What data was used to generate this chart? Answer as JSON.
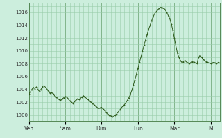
{
  "bg_color": "#cceedd",
  "grid_color": "#99ccaa",
  "line_color": "#2d5a1b",
  "marker_color": "#2d5a1b",
  "ylim": [
    999.0,
    1017.5
  ],
  "yticks": [
    1000,
    1002,
    1004,
    1006,
    1008,
    1010,
    1012,
    1014,
    1016
  ],
  "day_labels": [
    "Ven",
    "Sam",
    "Dim",
    "Lun",
    "Mar",
    "M"
  ],
  "day_positions": [
    0,
    24,
    48,
    72,
    96,
    120
  ],
  "total_hours": 126,
  "pressure_data": [
    1003.3,
    1003.6,
    1004.0,
    1004.3,
    1004.1,
    1004.4,
    1003.9,
    1003.7,
    1004.0,
    1004.4,
    1004.6,
    1004.3,
    1004.0,
    1003.7,
    1003.4,
    1003.5,
    1003.3,
    1003.0,
    1002.8,
    1002.6,
    1002.4,
    1002.3,
    1002.5,
    1002.7,
    1002.9,
    1002.8,
    1002.5,
    1002.2,
    1002.0,
    1001.8,
    1002.1,
    1002.3,
    1002.5,
    1002.4,
    1002.6,
    1002.8,
    1003.0,
    1002.8,
    1002.6,
    1002.4,
    1002.2,
    1002.0,
    1001.8,
    1001.6,
    1001.4,
    1001.2,
    1001.0,
    1001.1,
    1001.2,
    1000.9,
    1000.7,
    1000.4,
    1000.2,
    1000.0,
    999.9,
    999.7,
    999.8,
    1000.0,
    1000.2,
    1000.5,
    1000.8,
    1001.1,
    1001.4,
    1001.6,
    1001.9,
    1002.3,
    1002.7,
    1003.2,
    1003.9,
    1004.7,
    1005.5,
    1006.4,
    1007.3,
    1008.2,
    1009.1,
    1010.0,
    1010.9,
    1011.7,
    1012.5,
    1013.3,
    1014.0,
    1014.7,
    1015.3,
    1015.8,
    1016.1,
    1016.4,
    1016.6,
    1016.8,
    1016.7,
    1016.6,
    1016.4,
    1016.0,
    1015.5,
    1015.0,
    1014.2,
    1013.2,
    1012.0,
    1010.8,
    1009.7,
    1009.0,
    1008.5,
    1008.2,
    1008.3,
    1008.5,
    1008.3,
    1008.1,
    1008.0,
    1008.2,
    1008.3,
    1008.2,
    1008.1,
    1008.0,
    1009.0,
    1009.3,
    1009.0,
    1008.7,
    1008.5,
    1008.3,
    1008.2,
    1008.1,
    1008.0,
    1008.1,
    1008.2,
    1008.1,
    1008.0,
    1008.2
  ]
}
